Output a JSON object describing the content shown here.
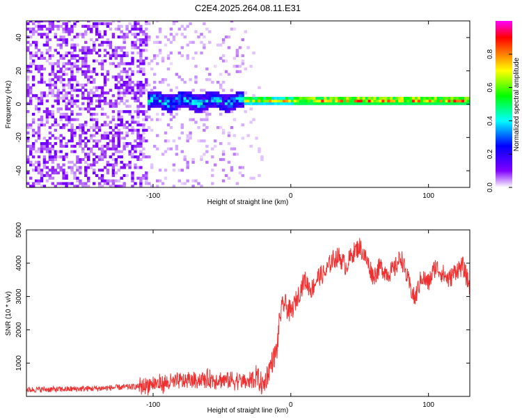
{
  "figure_title": "C2E4.2025.264.08.11.E31",
  "chart_data": [
    {
      "type": "heatmap",
      "title": "C2E4.2025.264.08.11.E31",
      "xlabel": "Height of straight line (km)",
      "ylabel": "Frequency (Hz)",
      "xlim": [
        -192,
        130
      ],
      "ylim": [
        -50,
        50
      ],
      "x_ticks": [
        -100,
        0,
        100
      ],
      "y_ticks": [
        -40,
        -20,
        0,
        20,
        40
      ],
      "colorbar": {
        "label": "Normalized spectral amplitude",
        "range": [
          0,
          1
        ],
        "ticks": [
          "0.0",
          "0.2",
          "0.4",
          "0.6",
          "0.8"
        ],
        "colors": [
          "#ffffff",
          "#8000ff",
          "#0000ff",
          "#00ffff",
          "#00ff00",
          "#ffff00",
          "#ff8000",
          "#ff0000",
          "#ff00ff"
        ]
      },
      "regions": [
        {
          "x_range": [
            -192,
            -105
          ],
          "description_level": 0.15,
          "freq_spread": 50
        },
        {
          "x_range": [
            -105,
            -35
          ],
          "description_level": 0.35,
          "freq_spread": 8
        },
        {
          "x_range": [
            -35,
            130
          ],
          "description_level": 0.7,
          "freq_spread": 2
        }
      ]
    },
    {
      "type": "line",
      "xlabel": "Height of straight line (km)",
      "ylabel": "SNR (10 * v/v)",
      "xlim": [
        -192,
        130
      ],
      "ylim": [
        0,
        5000
      ],
      "x_ticks": [
        -100,
        0,
        100
      ],
      "y_ticks": [
        1000,
        2000,
        3000,
        4000,
        5000
      ],
      "color": "#f03030",
      "series": [
        {
          "name": "SNR",
          "x": [
            -192,
            -180,
            -170,
            -160,
            -150,
            -140,
            -130,
            -120,
            -110,
            -100,
            -90,
            -80,
            -70,
            -60,
            -50,
            -40,
            -30,
            -25,
            -20,
            -15,
            -10,
            -8,
            -5,
            0,
            5,
            10,
            15,
            20,
            25,
            30,
            35,
            40,
            45,
            50,
            55,
            60,
            65,
            70,
            75,
            80,
            85,
            90,
            95,
            100,
            105,
            110,
            115,
            120,
            125,
            130
          ],
          "values": [
            200,
            210,
            210,
            220,
            230,
            240,
            260,
            280,
            300,
            380,
            400,
            450,
            500,
            520,
            500,
            480,
            450,
            600,
            300,
            900,
            1400,
            2400,
            2800,
            2500,
            3000,
            3500,
            3200,
            3600,
            3700,
            4100,
            4200,
            3900,
            4300,
            4500,
            4100,
            3600,
            3900,
            3700,
            3800,
            4200,
            3500,
            2900,
            3600,
            3400,
            3900,
            3700,
            3500,
            3800,
            3900,
            3300
          ]
        }
      ]
    }
  ]
}
